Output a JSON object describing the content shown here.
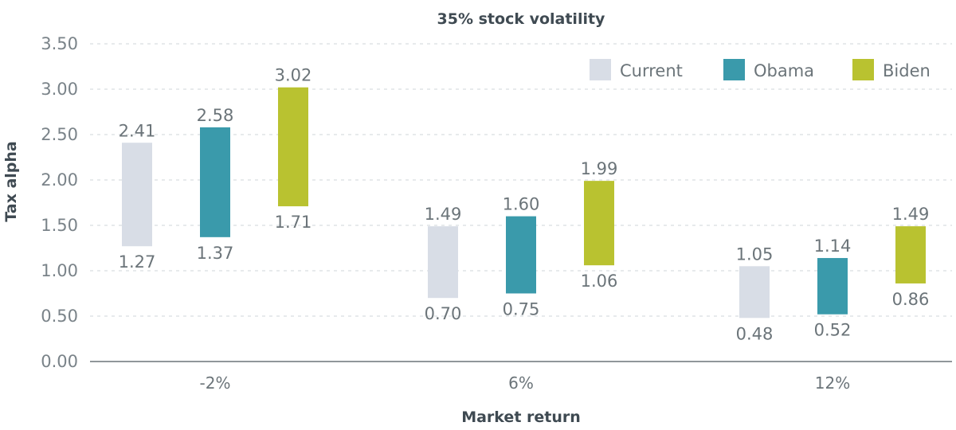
{
  "chart_data": {
    "type": "bar",
    "subtype": "floating-range",
    "title": "35% stock volatility",
    "xlabel": "Market return",
    "ylabel": "Tax alpha",
    "ylim": [
      0,
      3.5
    ],
    "yticks": [
      "0.00",
      "0.50",
      "1.00",
      "1.50",
      "2.00",
      "2.50",
      "3.00",
      "3.50"
    ],
    "grid": true,
    "legend_position": "top-right",
    "categories": [
      "-2%",
      "6%",
      "12%"
    ],
    "series": [
      {
        "name": "Current",
        "color": "#d8dde6",
        "low": [
          1.27,
          0.7,
          0.48
        ],
        "high": [
          2.41,
          1.49,
          1.05
        ],
        "low_labels": [
          "1.27",
          "0.70",
          "0.48"
        ],
        "high_labels": [
          "2.41",
          "1.49",
          "1.05"
        ]
      },
      {
        "name": "Obama",
        "color": "#3a9aab",
        "low": [
          1.37,
          0.75,
          0.52
        ],
        "high": [
          2.58,
          1.6,
          1.14
        ],
        "low_labels": [
          "1.37",
          "0.75",
          "0.52"
        ],
        "high_labels": [
          "2.58",
          "1.60",
          "1.14"
        ]
      },
      {
        "name": "Biden",
        "color": "#b9c230",
        "low": [
          1.71,
          1.06,
          0.86
        ],
        "high": [
          3.02,
          1.99,
          1.49
        ],
        "low_labels": [
          "1.71",
          "1.06",
          "0.86"
        ],
        "high_labels": [
          "3.02",
          "1.99",
          "1.49"
        ]
      }
    ]
  }
}
